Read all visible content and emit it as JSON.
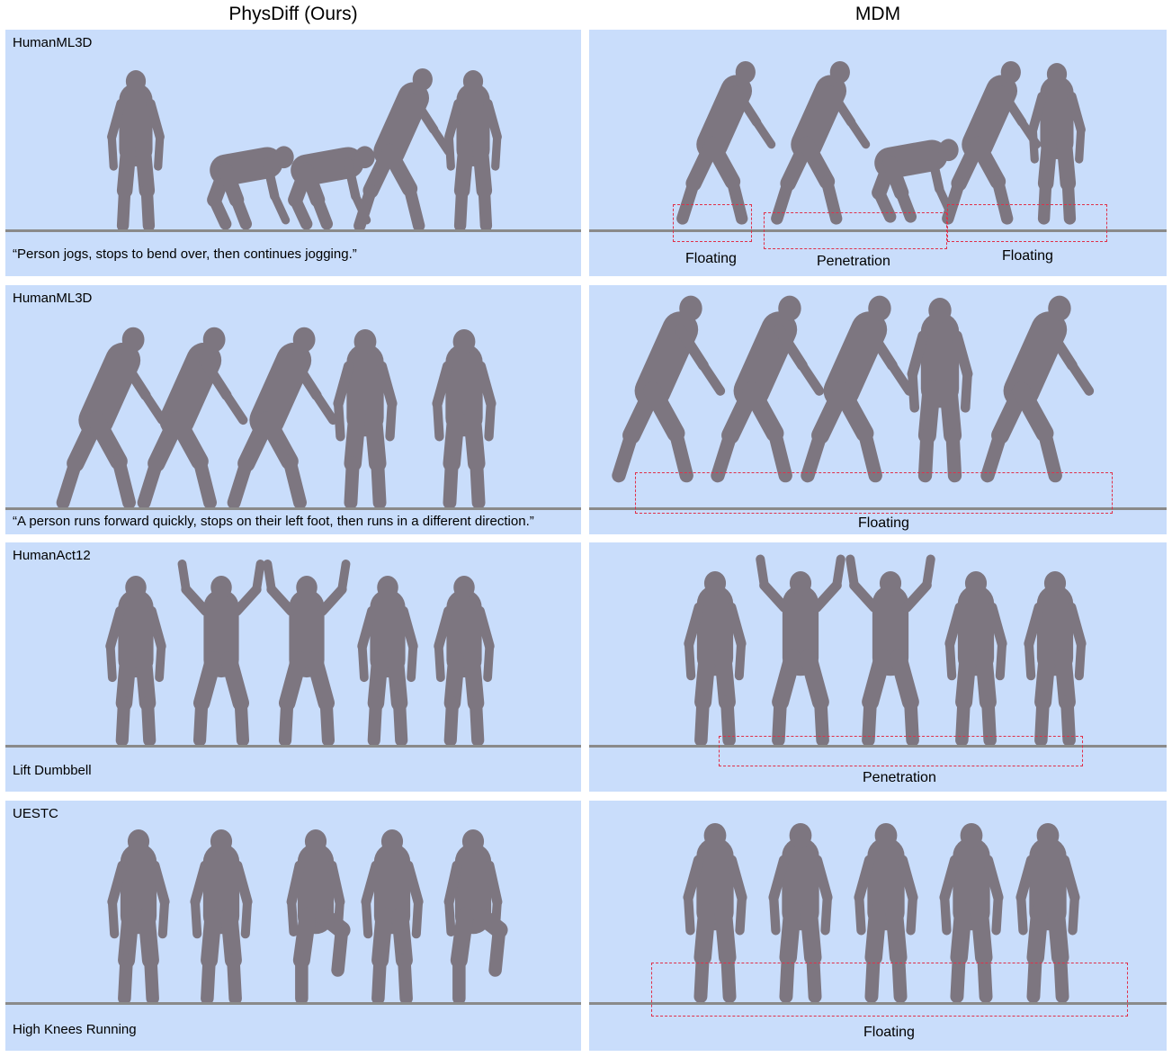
{
  "columns": {
    "left_title": "PhysDiff (Ours)",
    "right_title": "MDM"
  },
  "rows": [
    {
      "dataset": "HumanML3D",
      "caption": "“Person jogs, stops to bend over, then continues jogging.”",
      "annotations": [
        "Floating",
        "Penetration",
        "Floating"
      ]
    },
    {
      "dataset": "HumanML3D",
      "caption": "“A person runs forward quickly, stops on their left foot, then runs in a different direction.”",
      "annotations": [
        "Floating"
      ]
    },
    {
      "dataset": "HumanAct12",
      "caption": "Lift Dumbbell",
      "annotations": [
        "Penetration"
      ]
    },
    {
      "dataset": "UESTC",
      "caption": "High Knees Running",
      "annotations": [
        "Floating"
      ]
    }
  ],
  "colors": {
    "panel_bg": "#c9ddfb",
    "figure": "#7d7680",
    "ground": "#8a8a8a",
    "annotation": "#e0304a"
  }
}
